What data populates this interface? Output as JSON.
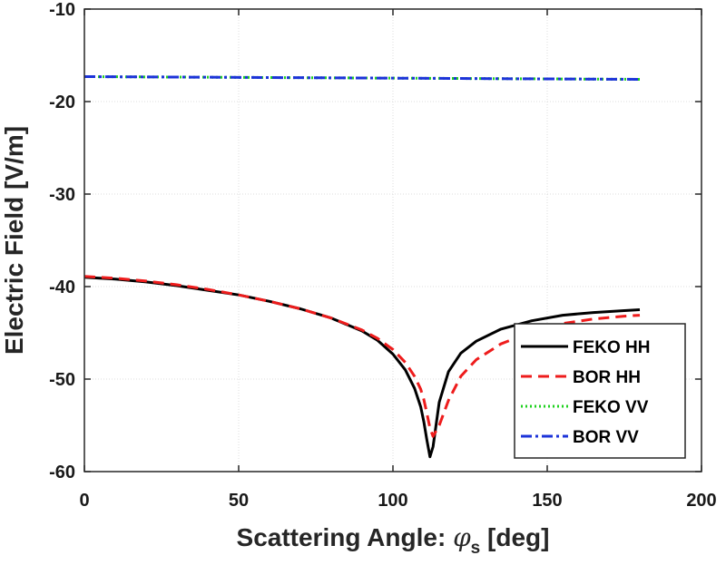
{
  "chart_data": {
    "type": "line",
    "title": "",
    "xlabel": "Scattering Angle: ",
    "xlabel_symbol": "φ",
    "xlabel_subscript": "s",
    "xlabel_unit": " [deg]",
    "ylabel": "Electric Field [V/m]",
    "xlim": [
      0,
      200
    ],
    "ylim": [
      -60,
      -10
    ],
    "xticks": [
      0,
      50,
      100,
      150,
      200
    ],
    "yticks": [
      -60,
      -50,
      -40,
      -30,
      -20,
      -10
    ],
    "grid": true,
    "legend_position": "bottom-right",
    "series": [
      {
        "name": "FEKO HH",
        "color": "#000000",
        "style": "solid",
        "x": [
          0,
          10,
          20,
          30,
          40,
          50,
          60,
          70,
          80,
          90,
          95,
          100,
          104,
          107,
          109,
          110,
          111,
          112,
          113,
          115,
          118,
          122,
          127,
          135,
          145,
          155,
          165,
          175,
          180
        ],
        "y": [
          -39.0,
          -39.2,
          -39.5,
          -39.9,
          -40.4,
          -40.9,
          -41.6,
          -42.4,
          -43.4,
          -44.8,
          -45.8,
          -47.3,
          -49.0,
          -51.0,
          -53.0,
          -54.6,
          -56.6,
          -58.4,
          -57.3,
          -52.5,
          -49.2,
          -47.2,
          -45.9,
          -44.6,
          -43.7,
          -43.1,
          -42.8,
          -42.6,
          -42.5
        ]
      },
      {
        "name": "BOR HH",
        "color": "#ee1c1c",
        "style": "dashed",
        "x": [
          0,
          10,
          20,
          30,
          40,
          50,
          60,
          70,
          80,
          90,
          95,
          100,
          104,
          107,
          109,
          110,
          111,
          112,
          113,
          115,
          118,
          122,
          127,
          135,
          145,
          155,
          165,
          175,
          180
        ],
        "y": [
          -38.9,
          -39.1,
          -39.4,
          -39.8,
          -40.3,
          -40.9,
          -41.6,
          -42.4,
          -43.4,
          -44.7,
          -45.6,
          -46.8,
          -48.2,
          -49.7,
          -51.1,
          -52.2,
          -53.7,
          -55.3,
          -56.2,
          -55.0,
          -52.3,
          -49.7,
          -47.9,
          -46.2,
          -44.9,
          -44.0,
          -43.5,
          -43.2,
          -43.1
        ]
      },
      {
        "name": "FEKO VV",
        "color": "#1fd11f",
        "style": "dotted",
        "x": [
          0,
          180
        ],
        "y": [
          -17.3,
          -17.6
        ]
      },
      {
        "name": "BOR VV",
        "color": "#1c33d9",
        "style": "dashdot",
        "x": [
          0,
          180
        ],
        "y": [
          -17.3,
          -17.6
        ]
      }
    ]
  }
}
